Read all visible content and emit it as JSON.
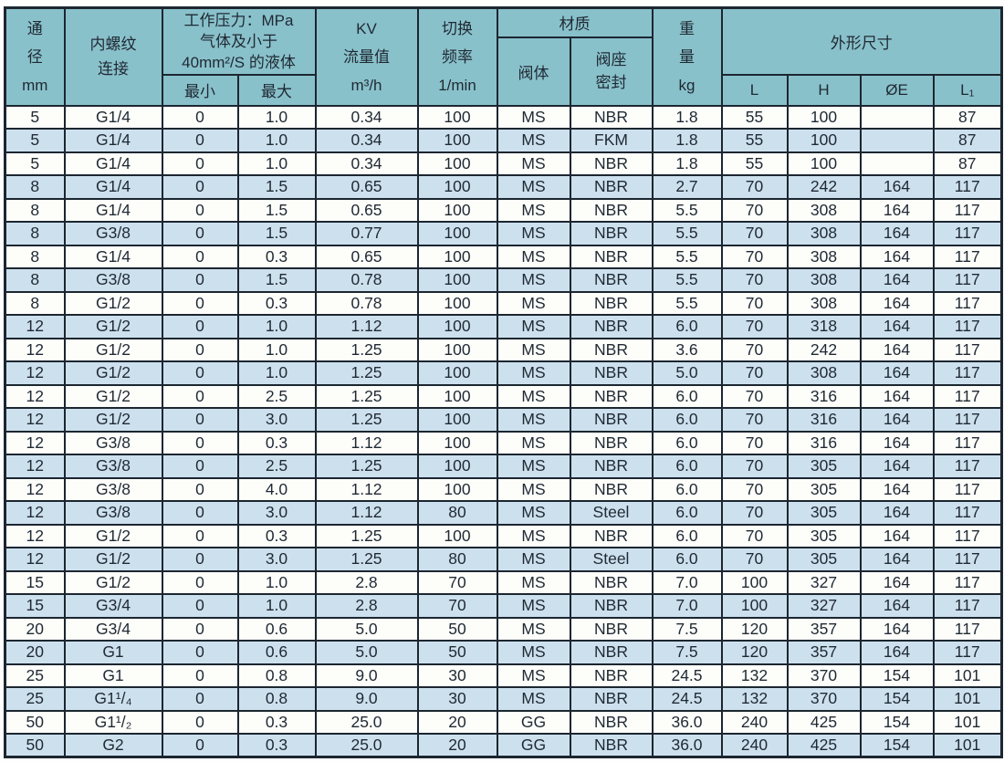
{
  "colors": {
    "border": "#1c2630",
    "header_bg": "#89c1cb",
    "row_bg": "#fdfdfa",
    "row_alt_bg": "#cde0ee",
    "text": "#1f2933"
  },
  "header": {
    "diameter": {
      "l1": "通",
      "l2": "径",
      "l3": "mm"
    },
    "thread": {
      "l1": "内螺纹",
      "l2": "连接"
    },
    "pressure": {
      "l1": "工作压力：MPa",
      "l2": "气体及小于",
      "l3": "40mm²/S 的液体",
      "min": "最小",
      "max": "最大"
    },
    "kv": {
      "l1": "KV",
      "l2": "流量值",
      "l3": "m³/h"
    },
    "freq": {
      "l1": "切换",
      "l2": "频率",
      "l3": "1/min"
    },
    "material": {
      "label": "材质",
      "body": "阀体",
      "seat_l1": "阀座",
      "seat_l2": "密封"
    },
    "weight": {
      "l1": "重",
      "l2": "量",
      "l3": "kg"
    },
    "dims": {
      "label": "外形尺寸",
      "L": "L",
      "H": "H",
      "E": "ØE",
      "L1": "L₁"
    }
  },
  "rows": [
    [
      "5",
      "G1/4",
      "0",
      "1.0",
      "0.34",
      "100",
      "MS",
      "NBR",
      "1.8",
      "55",
      "100",
      "",
      "87"
    ],
    [
      "5",
      "G1/4",
      "0",
      "1.0",
      "0.34",
      "100",
      "MS",
      "FKM",
      "1.8",
      "55",
      "100",
      "",
      "87"
    ],
    [
      "5",
      "G1/4",
      "0",
      "1.0",
      "0.34",
      "100",
      "MS",
      "NBR",
      "1.8",
      "55",
      "100",
      "",
      "87"
    ],
    [
      "8",
      "G1/4",
      "0",
      "1.5",
      "0.65",
      "100",
      "MS",
      "NBR",
      "2.7",
      "70",
      "242",
      "164",
      "117"
    ],
    [
      "8",
      "G1/4",
      "0",
      "1.5",
      "0.65",
      "100",
      "MS",
      "NBR",
      "5.5",
      "70",
      "308",
      "164",
      "117"
    ],
    [
      "8",
      "G3/8",
      "0",
      "1.5",
      "0.77",
      "100",
      "MS",
      "NBR",
      "5.5",
      "70",
      "308",
      "164",
      "117"
    ],
    [
      "8",
      "G1/4",
      "0",
      "0.3",
      "0.65",
      "100",
      "MS",
      "NBR",
      "5.5",
      "70",
      "308",
      "164",
      "117"
    ],
    [
      "8",
      "G3/8",
      "0",
      "1.5",
      "0.78",
      "100",
      "MS",
      "NBR",
      "5.5",
      "70",
      "308",
      "164",
      "117"
    ],
    [
      "8",
      "G1/2",
      "0",
      "0.3",
      "0.78",
      "100",
      "MS",
      "NBR",
      "5.5",
      "70",
      "308",
      "164",
      "117"
    ],
    [
      "12",
      "G1/2",
      "0",
      "1.0",
      "1.12",
      "100",
      "MS",
      "NBR",
      "6.0",
      "70",
      "318",
      "164",
      "117"
    ],
    [
      "12",
      "G1/2",
      "0",
      "1.0",
      "1.25",
      "100",
      "MS",
      "NBR",
      "3.6",
      "70",
      "242",
      "164",
      "117"
    ],
    [
      "12",
      "G1/2",
      "0",
      "1.0",
      "1.25",
      "100",
      "MS",
      "NBR",
      "5.0",
      "70",
      "308",
      "164",
      "117"
    ],
    [
      "12",
      "G1/2",
      "0",
      "2.5",
      "1.25",
      "100",
      "MS",
      "NBR",
      "6.0",
      "70",
      "316",
      "164",
      "117"
    ],
    [
      "12",
      "G1/2",
      "0",
      "3.0",
      "1.25",
      "100",
      "MS",
      "NBR",
      "6.0",
      "70",
      "316",
      "164",
      "117"
    ],
    [
      "12",
      "G3/8",
      "0",
      "0.3",
      "1.12",
      "100",
      "MS",
      "NBR",
      "6.0",
      "70",
      "316",
      "164",
      "117"
    ],
    [
      "12",
      "G3/8",
      "0",
      "2.5",
      "1.25",
      "100",
      "MS",
      "NBR",
      "6.0",
      "70",
      "305",
      "164",
      "117"
    ],
    [
      "12",
      "G3/8",
      "0",
      "4.0",
      "1.12",
      "100",
      "MS",
      "NBR",
      "6.0",
      "70",
      "305",
      "164",
      "117"
    ],
    [
      "12",
      "G3/8",
      "0",
      "3.0",
      "1.12",
      "80",
      "MS",
      "Steel",
      "6.0",
      "70",
      "305",
      "164",
      "117"
    ],
    [
      "12",
      "G1/2",
      "0",
      "0.3",
      "1.25",
      "100",
      "MS",
      "NBR",
      "6.0",
      "70",
      "305",
      "164",
      "117"
    ],
    [
      "12",
      "G1/2",
      "0",
      "3.0",
      "1.25",
      "80",
      "MS",
      "Steel",
      "6.0",
      "70",
      "305",
      "164",
      "117"
    ],
    [
      "15",
      "G1/2",
      "0",
      "1.0",
      "2.8",
      "70",
      "MS",
      "NBR",
      "7.0",
      "100",
      "327",
      "164",
      "117"
    ],
    [
      "15",
      "G3/4",
      "0",
      "1.0",
      "2.8",
      "70",
      "MS",
      "NBR",
      "7.0",
      "100",
      "327",
      "164",
      "117"
    ],
    [
      "20",
      "G3/4",
      "0",
      "0.6",
      "5.0",
      "50",
      "MS",
      "NBR",
      "7.5",
      "120",
      "357",
      "164",
      "117"
    ],
    [
      "20",
      "G1",
      "0",
      "0.6",
      "5.0",
      "50",
      "MS",
      "NBR",
      "7.5",
      "120",
      "357",
      "164",
      "117"
    ],
    [
      "25",
      "G1",
      "0",
      "0.8",
      "9.0",
      "30",
      "MS",
      "NBR",
      "24.5",
      "132",
      "370",
      "154",
      "101"
    ],
    [
      "25",
      "G1¹/₄",
      "0",
      "0.8",
      "9.0",
      "30",
      "MS",
      "NBR",
      "24.5",
      "132",
      "370",
      "154",
      "101"
    ],
    [
      "50",
      "G1¹/₂",
      "0",
      "0.3",
      "25.0",
      "20",
      "GG",
      "NBR",
      "36.0",
      "240",
      "425",
      "154",
      "101"
    ],
    [
      "50",
      "G2",
      "0",
      "0.3",
      "25.0",
      "20",
      "GG",
      "NBR",
      "36.0",
      "240",
      "425",
      "154",
      "101"
    ]
  ]
}
